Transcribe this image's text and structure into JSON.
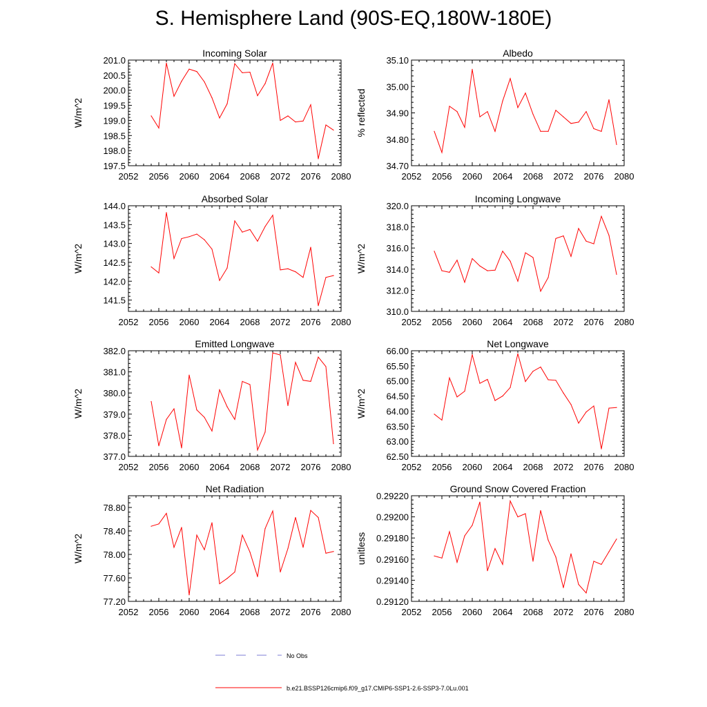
{
  "figure": {
    "title": "S. Hemisphere Land (90S-EQ,180W-180E)"
  },
  "colors": {
    "series": "#ff0000",
    "obs": "#7b7bd6",
    "axis": "#000000"
  },
  "legend": {
    "obs_label": "No Obs",
    "series_label": "b.e21.BSSP126cmip6.f09_g17.CMIP6-SSP1-2.6-SSP3-7.0Lu.001"
  },
  "chart_data": [
    {
      "type": "line",
      "title": "Incoming Solar",
      "ylabel": "W/m^2",
      "xlim": [
        2052,
        2080
      ],
      "ylim": [
        197.5,
        201.0
      ],
      "xticks": [
        2052,
        2056,
        2060,
        2064,
        2068,
        2072,
        2076,
        2080
      ],
      "xtick_labels": [
        "2052",
        "2056",
        "2060",
        "2064",
        "2068",
        "2072",
        "2076",
        "2080"
      ],
      "yticks": [
        197.5,
        198.0,
        198.5,
        199.0,
        199.5,
        200.0,
        200.5,
        201.0
      ],
      "ytick_labels": [
        "197.5",
        "198.0",
        "198.5",
        "199.0",
        "199.5",
        "200.0",
        "200.5",
        "201.0"
      ],
      "x": [
        2055,
        2056,
        2057,
        2058,
        2059,
        2060,
        2061,
        2062,
        2063,
        2064,
        2065,
        2066,
        2067,
        2068,
        2069,
        2070,
        2071,
        2072,
        2073,
        2074,
        2075,
        2076,
        2077,
        2078,
        2079
      ],
      "values": [
        199.15,
        198.75,
        200.9,
        199.8,
        200.3,
        200.7,
        200.62,
        200.28,
        199.75,
        199.08,
        199.55,
        200.88,
        200.58,
        200.6,
        199.82,
        200.22,
        200.9,
        199.0,
        199.15,
        198.95,
        198.98,
        199.52,
        197.73,
        198.85,
        198.68
      ]
    },
    {
      "type": "line",
      "title": "Albedo",
      "ylabel": "% reflected",
      "xlim": [
        2052,
        2080
      ],
      "ylim": [
        34.7,
        35.1
      ],
      "xticks": [
        2052,
        2056,
        2060,
        2064,
        2068,
        2072,
        2076,
        2080
      ],
      "xtick_labels": [
        "2052",
        "2056",
        "2060",
        "2064",
        "2068",
        "2072",
        "2076",
        "2080"
      ],
      "yticks": [
        34.7,
        34.8,
        34.9,
        35.0,
        35.1
      ],
      "ytick_labels": [
        "34.70",
        "34.80",
        "34.90",
        "35.00",
        "35.10"
      ],
      "x": [
        2055,
        2056,
        2057,
        2058,
        2059,
        2060,
        2061,
        2062,
        2063,
        2064,
        2065,
        2066,
        2067,
        2068,
        2069,
        2070,
        2071,
        2072,
        2073,
        2074,
        2075,
        2076,
        2077,
        2078,
        2079
      ],
      "values": [
        34.83,
        34.75,
        34.925,
        34.905,
        34.845,
        35.065,
        34.885,
        34.905,
        34.83,
        34.945,
        35.03,
        34.92,
        34.975,
        34.895,
        34.83,
        34.83,
        34.91,
        34.885,
        34.86,
        34.865,
        34.905,
        34.84,
        34.83,
        34.95,
        34.78
      ]
    },
    {
      "type": "line",
      "title": "Absorbed Solar",
      "ylabel": "W/m^2",
      "xlim": [
        2052,
        2080
      ],
      "ylim": [
        141.2,
        144.0
      ],
      "xticks": [
        2052,
        2056,
        2060,
        2064,
        2068,
        2072,
        2076,
        2080
      ],
      "xtick_labels": [
        "2052",
        "2056",
        "2060",
        "2064",
        "2068",
        "2072",
        "2076",
        "2080"
      ],
      "yticks": [
        141.5,
        142.0,
        142.5,
        143.0,
        143.5,
        144.0
      ],
      "ytick_labels": [
        "141.5",
        "142.0",
        "142.5",
        "143.0",
        "143.5",
        "144.0"
      ],
      "x": [
        2055,
        2056,
        2057,
        2058,
        2059,
        2060,
        2061,
        2062,
        2063,
        2064,
        2065,
        2066,
        2067,
        2068,
        2069,
        2070,
        2071,
        2072,
        2073,
        2074,
        2075,
        2076,
        2077,
        2078,
        2079
      ],
      "values": [
        142.38,
        142.22,
        143.82,
        142.6,
        143.13,
        143.18,
        143.25,
        143.1,
        142.85,
        142.02,
        142.35,
        143.6,
        143.3,
        143.37,
        143.06,
        143.45,
        143.75,
        142.3,
        142.33,
        142.25,
        142.1,
        142.9,
        141.35,
        142.1,
        142.15
      ]
    },
    {
      "type": "line",
      "title": "Incoming Longwave",
      "ylabel": "W/m^2",
      "xlim": [
        2052,
        2080
      ],
      "ylim": [
        310.0,
        320.0
      ],
      "xticks": [
        2052,
        2056,
        2060,
        2064,
        2068,
        2072,
        2076,
        2080
      ],
      "xtick_labels": [
        "2052",
        "2056",
        "2060",
        "2064",
        "2068",
        "2072",
        "2076",
        "2080"
      ],
      "yticks": [
        310.0,
        312.0,
        314.0,
        316.0,
        318.0,
        320.0
      ],
      "ytick_labels": [
        "310.0",
        "312.0",
        "314.0",
        "316.0",
        "318.0",
        "320.0"
      ],
      "x": [
        2055,
        2056,
        2057,
        2058,
        2059,
        2060,
        2061,
        2062,
        2063,
        2064,
        2065,
        2066,
        2067,
        2068,
        2069,
        2070,
        2071,
        2072,
        2073,
        2074,
        2075,
        2076,
        2077,
        2078,
        2079
      ],
      "values": [
        315.7,
        313.85,
        313.7,
        314.85,
        312.75,
        315.0,
        314.3,
        313.85,
        313.9,
        315.7,
        314.75,
        312.85,
        315.55,
        315.1,
        311.9,
        313.2,
        316.9,
        317.15,
        315.2,
        317.85,
        316.65,
        316.4,
        319.0,
        317.2,
        313.5
      ]
    },
    {
      "type": "line",
      "title": "Emitted Longwave",
      "ylabel": "W/m^2",
      "xlim": [
        2052,
        2080
      ],
      "ylim": [
        377.0,
        382.0
      ],
      "xticks": [
        2052,
        2056,
        2060,
        2064,
        2068,
        2072,
        2076,
        2080
      ],
      "xtick_labels": [
        "2052",
        "2056",
        "2060",
        "2064",
        "2068",
        "2072",
        "2076",
        "2080"
      ],
      "yticks": [
        377.0,
        378.0,
        379.0,
        380.0,
        381.0,
        382.0
      ],
      "ytick_labels": [
        "377.0",
        "378.0",
        "379.0",
        "380.0",
        "381.0",
        "382.0"
      ],
      "x": [
        2055,
        2056,
        2057,
        2058,
        2059,
        2060,
        2061,
        2062,
        2063,
        2064,
        2065,
        2066,
        2067,
        2068,
        2069,
        2070,
        2071,
        2072,
        2073,
        2074,
        2075,
        2076,
        2077,
        2078,
        2079
      ],
      "values": [
        379.6,
        377.5,
        378.75,
        379.25,
        377.4,
        380.85,
        379.2,
        378.85,
        378.2,
        380.15,
        379.35,
        378.75,
        380.55,
        380.4,
        377.3,
        378.15,
        381.9,
        381.8,
        379.4,
        381.45,
        380.6,
        380.55,
        381.7,
        381.25,
        377.6
      ]
    },
    {
      "type": "line",
      "title": "Net Longwave",
      "ylabel": "W/m^2",
      "xlim": [
        2052,
        2080
      ],
      "ylim": [
        62.5,
        66.0
      ],
      "xticks": [
        2052,
        2056,
        2060,
        2064,
        2068,
        2072,
        2076,
        2080
      ],
      "xtick_labels": [
        "2052",
        "2056",
        "2060",
        "2064",
        "2068",
        "2072",
        "2076",
        "2080"
      ],
      "yticks": [
        62.5,
        63.0,
        63.5,
        64.0,
        64.5,
        65.0,
        65.5,
        66.0
      ],
      "ytick_labels": [
        "62.50",
        "63.00",
        "63.50",
        "64.00",
        "64.50",
        "65.00",
        "65.50",
        "66.00"
      ],
      "x": [
        2055,
        2056,
        2057,
        2058,
        2059,
        2060,
        2061,
        2062,
        2063,
        2064,
        2065,
        2066,
        2067,
        2068,
        2069,
        2070,
        2071,
        2072,
        2073,
        2074,
        2075,
        2076,
        2077,
        2078,
        2079
      ],
      "values": [
        63.9,
        63.7,
        65.1,
        64.47,
        64.66,
        65.87,
        64.92,
        65.05,
        64.35,
        64.5,
        64.78,
        65.9,
        64.98,
        65.32,
        65.46,
        65.04,
        65.02,
        64.6,
        64.22,
        63.6,
        63.97,
        64.17,
        62.75,
        64.1,
        64.12
      ]
    },
    {
      "type": "line",
      "title": "Net Radiation",
      "ylabel": "W/m^2",
      "xlim": [
        2052,
        2080
      ],
      "ylim": [
        77.2,
        79.0
      ],
      "xticks": [
        2052,
        2056,
        2060,
        2064,
        2068,
        2072,
        2076,
        2080
      ],
      "xtick_labels": [
        "2052",
        "2056",
        "2060",
        "2064",
        "2068",
        "2072",
        "2076",
        "2080"
      ],
      "yticks": [
        77.2,
        77.6,
        78.0,
        78.4,
        78.8
      ],
      "ytick_labels": [
        "77.20",
        "77.60",
        "78.00",
        "78.40",
        "78.80"
      ],
      "x": [
        2055,
        2056,
        2057,
        2058,
        2059,
        2060,
        2061,
        2062,
        2063,
        2064,
        2065,
        2066,
        2067,
        2068,
        2069,
        2070,
        2071,
        2072,
        2073,
        2074,
        2075,
        2076,
        2077,
        2078,
        2079
      ],
      "values": [
        78.48,
        78.52,
        78.7,
        78.12,
        78.46,
        77.31,
        78.33,
        78.08,
        78.54,
        77.5,
        77.59,
        77.7,
        78.33,
        78.04,
        77.62,
        78.44,
        78.74,
        77.7,
        78.1,
        78.63,
        78.12,
        78.75,
        78.63,
        78.02,
        78.05
      ]
    },
    {
      "type": "line",
      "title": "Ground Snow Covered Fraction",
      "ylabel": "unitless",
      "xlim": [
        2052,
        2080
      ],
      "ylim": [
        0.2912,
        0.2922
      ],
      "xticks": [
        2052,
        2056,
        2060,
        2064,
        2068,
        2072,
        2076,
        2080
      ],
      "xtick_labels": [
        "2052",
        "2056",
        "2060",
        "2064",
        "2068",
        "2072",
        "2076",
        "2080"
      ],
      "yticks": [
        0.2912,
        0.2914,
        0.2916,
        0.2918,
        0.292,
        0.2922
      ],
      "ytick_labels": [
        "0.29120",
        "0.29140",
        "0.29160",
        "0.29180",
        "0.29200",
        "0.29220"
      ],
      "x": [
        2055,
        2056,
        2057,
        2058,
        2059,
        2060,
        2061,
        2062,
        2063,
        2064,
        2065,
        2066,
        2067,
        2068,
        2069,
        2070,
        2071,
        2072,
        2073,
        2074,
        2075,
        2076,
        2077,
        2078,
        2079
      ],
      "values": [
        0.29163,
        0.29161,
        0.29186,
        0.29157,
        0.29182,
        0.29192,
        0.29214,
        0.29149,
        0.2917,
        0.29155,
        0.29215,
        0.292,
        0.29203,
        0.29158,
        0.29206,
        0.29178,
        0.29162,
        0.29133,
        0.29165,
        0.29136,
        0.29128,
        0.29158,
        0.29155,
        0.29167,
        0.29179
      ]
    }
  ]
}
